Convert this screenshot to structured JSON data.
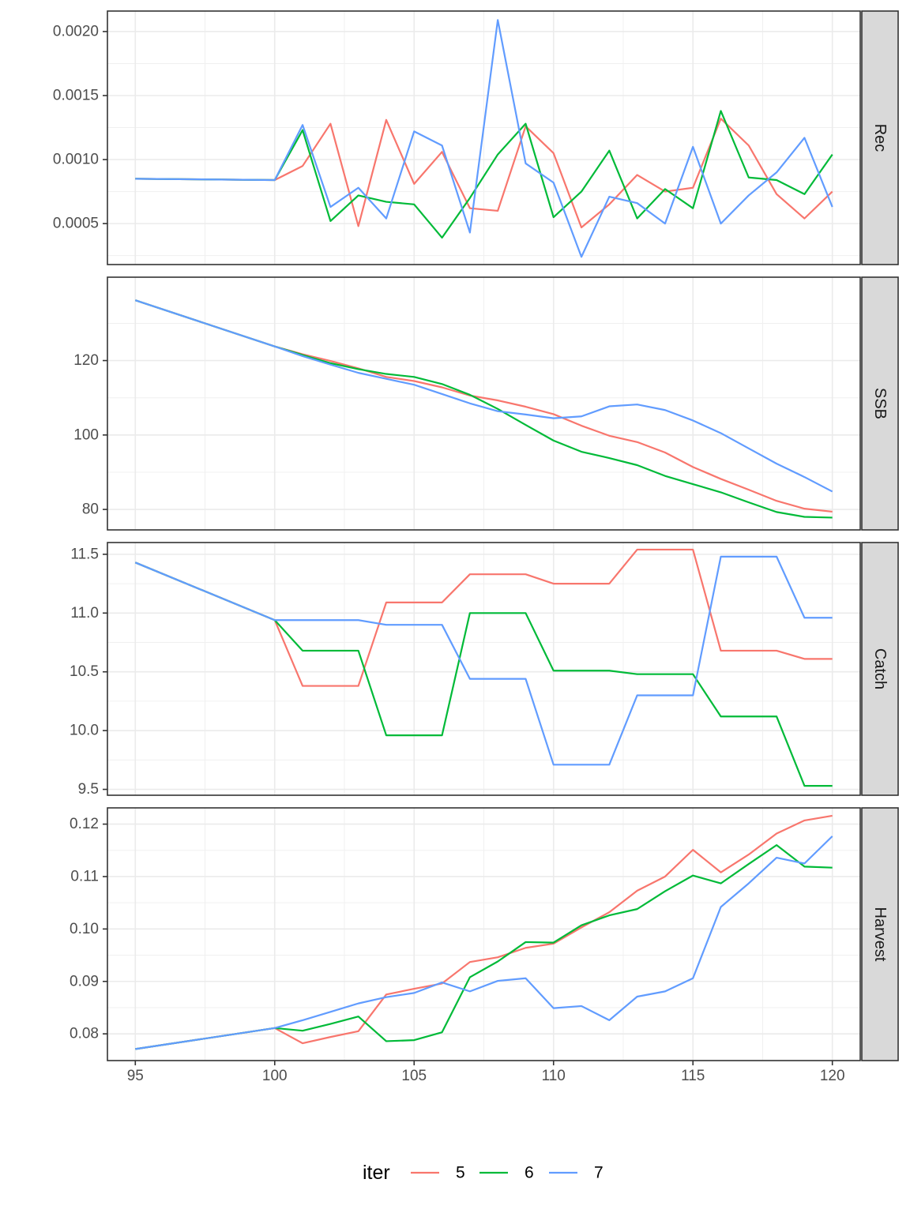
{
  "chart_data": {
    "type": "line",
    "x": [
      95,
      100,
      101,
      102,
      103,
      104,
      105,
      106,
      107,
      108,
      109,
      110,
      111,
      112,
      113,
      114,
      115,
      116,
      117,
      118,
      119,
      120
    ],
    "x_range": [
      94,
      121
    ],
    "x_ticks": [
      95,
      100,
      105,
      110,
      115,
      120
    ],
    "x_tick_labels": [
      "95",
      "100",
      "105",
      "110",
      "115",
      "120"
    ],
    "xlabel": "",
    "grid": true,
    "legend": {
      "title": "iter",
      "position": "bottom",
      "entries": [
        {
          "label": "5",
          "color": "#F8766D"
        },
        {
          "label": "6",
          "color": "#00BA38"
        },
        {
          "label": "7",
          "color": "#619CFF"
        }
      ]
    },
    "panels": [
      {
        "strip_label": "Rec",
        "ylim": [
          0.00018,
          0.00216
        ],
        "y_ticks": [
          0.0005,
          0.001,
          0.0015,
          0.002
        ],
        "y_tick_labels": [
          "0.0005",
          "0.0010",
          "0.0015",
          "0.0020"
        ],
        "series": [
          {
            "name": "5",
            "values": [
              0.00085,
              0.00084,
              0.00095,
              0.00128,
              0.00048,
              0.00131,
              0.00081,
              0.00106,
              0.00062,
              0.0006,
              0.00126,
              0.00105,
              0.00047,
              0.00065,
              0.00088,
              0.00075,
              0.00078,
              0.00132,
              0.00111,
              0.00073,
              0.00054,
              0.00075
            ]
          },
          {
            "name": "6",
            "values": [
              0.00085,
              0.00084,
              0.00123,
              0.00052,
              0.00072,
              0.00067,
              0.00065,
              0.00039,
              0.0007,
              0.00104,
              0.00128,
              0.00055,
              0.00075,
              0.00107,
              0.00054,
              0.00077,
              0.00062,
              0.00138,
              0.00086,
              0.00084,
              0.00073,
              0.00104
            ]
          },
          {
            "name": "7",
            "values": [
              0.00085,
              0.00084,
              0.00127,
              0.00063,
              0.00078,
              0.00054,
              0.00122,
              0.00111,
              0.00043,
              0.00209,
              0.00097,
              0.00082,
              0.00024,
              0.00071,
              0.00066,
              0.0005,
              0.0011,
              0.0005,
              0.00072,
              0.0009,
              0.00117,
              0.00063
            ]
          }
        ]
      },
      {
        "strip_label": "SSB",
        "ylim": [
          74.5,
          142.4
        ],
        "y_ticks": [
          80,
          100,
          120
        ],
        "y_tick_labels": [
          "80",
          "100",
          "120"
        ],
        "series": [
          {
            "name": "5",
            "values": [
              136.2,
              123.8,
              121.7,
              119.9,
              117.9,
              115.6,
              114.5,
              112.8,
              110.6,
              109.3,
              107.6,
              105.6,
              102.5,
              99.8,
              98.1,
              95.3,
              91.4,
              88.2,
              85.3,
              82.3,
              80.2,
              79.4
            ]
          },
          {
            "name": "6",
            "values": [
              136.2,
              123.8,
              121.5,
              119.3,
              117.7,
              116.4,
              115.6,
              113.7,
              110.8,
              107.0,
              102.7,
              98.5,
              95.5,
              93.8,
              91.9,
              89.0,
              86.8,
              84.6,
              81.9,
              79.3,
              78.0,
              77.8
            ]
          },
          {
            "name": "7",
            "values": [
              136.2,
              123.8,
              121.2,
              118.9,
              116.7,
              115.1,
              113.5,
              111.0,
              108.5,
              106.4,
              105.5,
              104.5,
              105.0,
              107.7,
              108.2,
              106.7,
              103.9,
              100.5,
              96.4,
              92.3,
              88.7,
              84.8
            ]
          }
        ]
      },
      {
        "strip_label": "Catch",
        "ylim": [
          9.45,
          11.6
        ],
        "y_ticks": [
          9.5,
          10.0,
          10.5,
          11.0,
          11.5
        ],
        "y_tick_labels": [
          "9.5",
          "10.0",
          "10.5",
          "11.0",
          "11.5"
        ],
        "series": [
          {
            "name": "5",
            "values": [
              11.43,
              10.94,
              10.38,
              10.38,
              10.38,
              11.09,
              11.09,
              11.09,
              11.33,
              11.33,
              11.33,
              11.25,
              11.25,
              11.25,
              11.54,
              11.54,
              11.54,
              10.68,
              10.68,
              10.68,
              10.61,
              10.61
            ]
          },
          {
            "name": "6",
            "values": [
              11.43,
              10.94,
              10.68,
              10.68,
              10.68,
              9.96,
              9.96,
              9.96,
              11.0,
              11.0,
              11.0,
              10.51,
              10.51,
              10.51,
              10.48,
              10.48,
              10.48,
              10.12,
              10.12,
              10.12,
              9.53,
              9.53
            ]
          },
          {
            "name": "7",
            "values": [
              11.43,
              10.94,
              10.94,
              10.94,
              10.94,
              10.9,
              10.9,
              10.9,
              10.44,
              10.44,
              10.44,
              9.71,
              9.71,
              9.71,
              10.3,
              10.3,
              10.3,
              11.48,
              11.48,
              11.48,
              10.96,
              10.96
            ]
          }
        ]
      },
      {
        "strip_label": "Harvest",
        "ylim": [
          0.0749,
          0.1231
        ],
        "y_ticks": [
          0.08,
          0.09,
          0.1,
          0.11,
          0.12
        ],
        "y_tick_labels": [
          "0.08",
          "0.09",
          "0.10",
          "0.11",
          "0.12"
        ],
        "series": [
          {
            "name": "5",
            "values": [
              0.0771,
              0.0811,
              0.0782,
              0.0794,
              0.0805,
              0.0875,
              0.0886,
              0.0896,
              0.0937,
              0.0946,
              0.0964,
              0.0972,
              0.1003,
              0.1032,
              0.1073,
              0.11,
              0.1151,
              0.1108,
              0.1142,
              0.1182,
              0.1207,
              0.1216
            ]
          },
          {
            "name": "6",
            "values": [
              0.0771,
              0.0811,
              0.0806,
              0.0819,
              0.0833,
              0.0786,
              0.0788,
              0.0803,
              0.0908,
              0.0938,
              0.0975,
              0.0974,
              0.1007,
              0.1026,
              0.1038,
              0.1072,
              0.1102,
              0.1087,
              0.1124,
              0.116,
              0.1119,
              0.1117
            ]
          },
          {
            "name": "7",
            "values": [
              0.0771,
              0.0811,
              0.0826,
              0.0842,
              0.0858,
              0.087,
              0.0878,
              0.0898,
              0.0881,
              0.0901,
              0.0906,
              0.0849,
              0.0853,
              0.0826,
              0.0871,
              0.0881,
              0.0906,
              0.1042,
              0.1087,
              0.1136,
              0.1125,
              0.1177
            ]
          }
        ]
      }
    ]
  }
}
